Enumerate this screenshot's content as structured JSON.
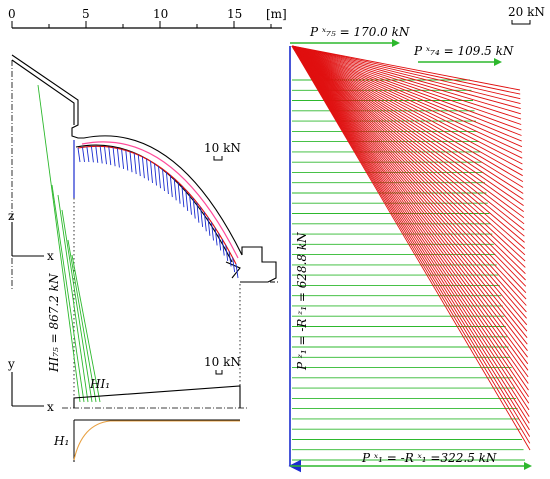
{
  "scale_axis": {
    "ticks": [
      "0",
      "5",
      "10",
      "15"
    ],
    "unit": "[m]"
  },
  "axes": {
    "z": "z",
    "x_upper": "x",
    "y": "y",
    "x_lower": "x"
  },
  "scale_bars": {
    "left_upper": "10 kN",
    "left_lower": "10 kN",
    "right": "20 kN"
  },
  "labels": {
    "HI75": "HI₇₅ = 867.2 kN",
    "HI1": "HI₁",
    "H1": "H₁",
    "P75": "P ˣ₇₅ = 170.0 kN",
    "P74": "P ˣ₇₄ = 109.5 kN",
    "P1z": "P ᶻ₁ = -R ᶻ₁ = 628.8 kN",
    "P1x": "P ˣ₁ = -R ˣ₁ =322.5 kN"
  },
  "colors": {
    "structure": "#000000",
    "green": "#2db82d",
    "red": "#e01010",
    "blue": "#1a2ccf",
    "pink": "#ff4a9a",
    "orange": "#e8a040"
  }
}
